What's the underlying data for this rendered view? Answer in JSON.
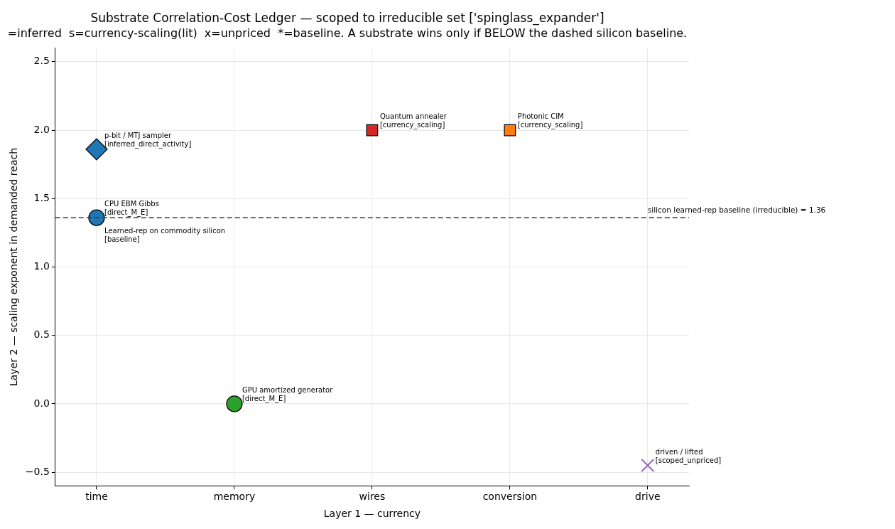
{
  "chart_data": {
    "type": "scatter",
    "title": "Substrate Correlation-Cost Ledger — scoped to irreducible set ['spinglass_expander']",
    "subtitle": "=inferred  s=currency-scaling(lit)  x=unpriced  *=baseline. A substrate wins only if BELOW the dashed silicon baseline.",
    "xlabel": "Layer 1 — currency",
    "ylabel": "Layer 2 — scaling exponent in demanded reach",
    "categories": [
      "time",
      "memory",
      "wires",
      "conversion",
      "drive"
    ],
    "series": [
      {
        "color": "#1f77b4",
        "marker": "diamond",
        "values": [
          1.86,
          null,
          null,
          null,
          null
        ]
      },
      {
        "color": "#1f77b4",
        "marker": "circle",
        "values": [
          1.36,
          null,
          null,
          null,
          null
        ]
      },
      {
        "color": "#2ca02c",
        "marker": "circle",
        "values": [
          null,
          0.0,
          null,
          null,
          null
        ]
      },
      {
        "color": "#d62728",
        "marker": "square",
        "values": [
          null,
          null,
          2.0,
          null,
          null
        ]
      },
      {
        "color": "#ff7f0e",
        "marker": "square",
        "values": [
          null,
          null,
          null,
          2.0,
          null
        ]
      },
      {
        "color": "#9467bd",
        "marker": "cross",
        "values": [
          null,
          null,
          null,
          null,
          -0.45
        ]
      }
    ],
    "annotations": [
      {
        "text": "p-bit / MTJ sampler\n[inferred_direct_activity]",
        "x": "time",
        "y": 1.86
      },
      {
        "text": "CPU EBM Gibbs\n[direct_M_E]",
        "x": "time",
        "y": 1.36
      },
      {
        "text": "Learned-rep on commodity silicon\n[baseline]",
        "x": "time",
        "y": 1.36
      },
      {
        "text": "GPU amortized generator\n[direct_M_E]",
        "x": "memory",
        "y": 0.0
      },
      {
        "text": "Quantum annealer\n[currency_scaling]",
        "x": "wires",
        "y": 2.0
      },
      {
        "text": "Photonic CIM\n[currency_scaling]",
        "x": "conversion",
        "y": 2.0
      },
      {
        "text": "driven / lifted\n[scoped_unpriced]",
        "x": "drive",
        "y": -0.45
      }
    ],
    "ref_lines": [
      {
        "axis": "y",
        "value": 1.36,
        "label": "silicon learned-rep baseline (irreducible) = 1.36",
        "color": "#333333",
        "line_style": "dashed"
      }
    ],
    "ylim": [
      -0.6,
      2.6
    ],
    "yticks": [
      -0.5,
      {
        "value": 0,
        "label": "0.0"
      },
      0.5,
      {
        "value": 1,
        "label": "1.0"
      },
      1.5,
      {
        "value": 2,
        "label": "2.0"
      },
      2.5
    ],
    "grid": true,
    "legend": false
  }
}
